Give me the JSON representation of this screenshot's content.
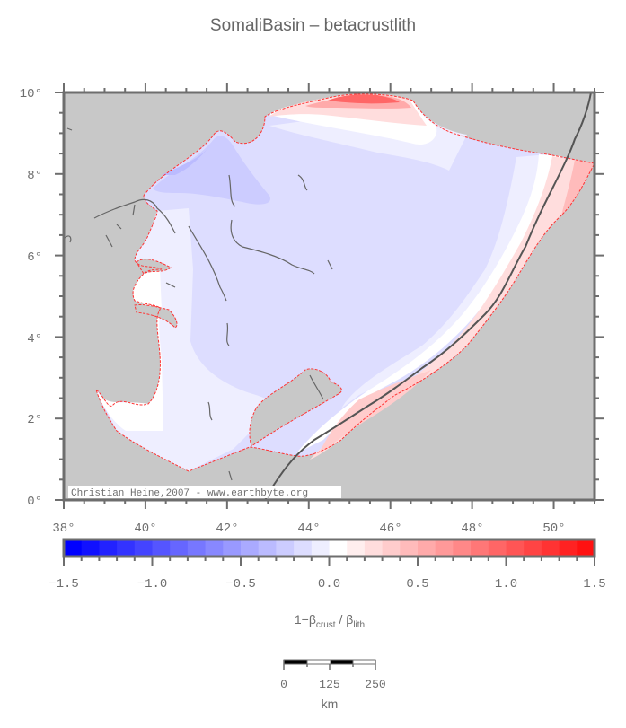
{
  "title": "SomaliBasin – betacrustlith",
  "map": {
    "region": {
      "lon_min": 38,
      "lon_max": 51,
      "lat_min": 0,
      "lat_max": 10
    },
    "x_ticks": [
      "38°",
      "40°",
      "42°",
      "44°",
      "46°",
      "48°",
      "50°"
    ],
    "y_ticks": [
      "0°",
      "2°",
      "4°",
      "6°",
      "8°",
      "10°"
    ],
    "credit": "Christian Heine,2007 - www.earthbyte.org",
    "colors": {
      "land": "#c8c8c8",
      "frame": "#6e6e6e",
      "boundary": "#ff3333",
      "coastline": "#666666"
    }
  },
  "colorbar": {
    "ticks": [
      "−1.5",
      "−1.0",
      "−0.5",
      "0.0",
      "0.5",
      "1.0",
      "1.5"
    ],
    "min": -1.5,
    "max": 1.5,
    "step": 0.1,
    "label_prefix": "1−β",
    "label_sub1": "crust",
    "label_mid": " / β",
    "label_sub2": "lith",
    "colors": [
      "#0000ff",
      "#1111ff",
      "#2222ff",
      "#3333ff",
      "#4444ff",
      "#5555ff",
      "#6666ff",
      "#7777ff",
      "#8888ff",
      "#9999ff",
      "#aaaaff",
      "#bbbbff",
      "#ccccff",
      "#ddddff",
      "#eeeeff",
      "#ffffff",
      "#ffeeee",
      "#ffdddd",
      "#ffcccc",
      "#ffbbbb",
      "#ffaaaa",
      "#ff9999",
      "#ff8888",
      "#ff7777",
      "#ff6666",
      "#ff5555",
      "#ff4444",
      "#ff3333",
      "#ff2222",
      "#ff1111"
    ]
  },
  "scalebar": {
    "ticks": [
      "0",
      "125",
      "250"
    ],
    "unit": "km"
  }
}
